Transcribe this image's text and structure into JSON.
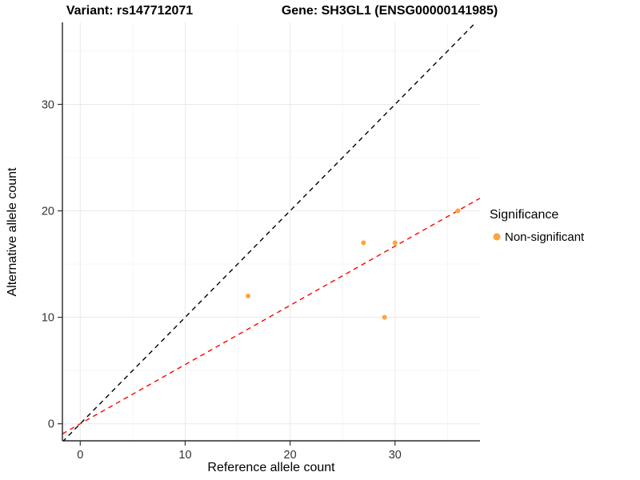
{
  "chart_data": {
    "type": "scatter",
    "titles": {
      "left": "Variant: rs147712071",
      "right": "Gene: SH3GL1 (ENSG00000141985)"
    },
    "xlabel": "Reference allele count",
    "ylabel": "Alternative allele count",
    "xlim": [
      -1.7,
      38.1
    ],
    "ylim": [
      -1.6,
      37.7
    ],
    "xticks": [
      0,
      10,
      20,
      30
    ],
    "yticks": [
      0,
      10,
      20,
      30
    ],
    "minor_xticks": [
      5,
      15,
      25,
      35
    ],
    "minor_yticks": [
      5,
      15,
      25,
      35
    ],
    "grid": "on",
    "points": [
      {
        "x": 16,
        "y": 12
      },
      {
        "x": 27,
        "y": 17
      },
      {
        "x": 29,
        "y": 10
      },
      {
        "x": 30,
        "y": 17
      },
      {
        "x": 36,
        "y": 20
      }
    ],
    "point_color": "#FFA33E",
    "identity_line": {
      "slope": 1,
      "intercept": 0,
      "color": "#000000",
      "style": "dashed"
    },
    "fit_line": {
      "slope": 0.556,
      "intercept": 0,
      "color": "#FF0000",
      "style": "dashed"
    },
    "legend": {
      "title": "Significance",
      "position": "right",
      "items": [
        {
          "label": "Non-significant",
          "color": "#FFA33E"
        }
      ]
    }
  }
}
